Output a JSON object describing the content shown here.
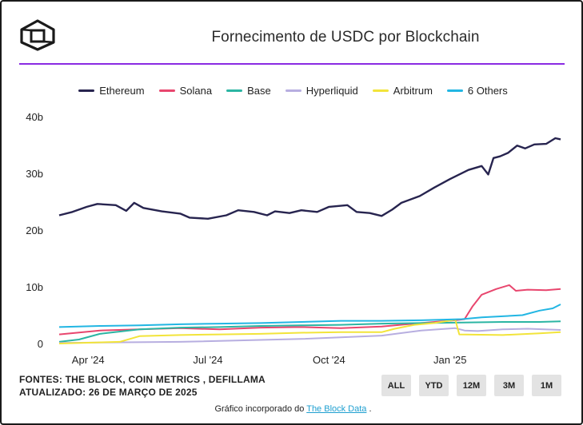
{
  "header": {
    "title": "Fornecimento de USDC por Blockchain"
  },
  "legend": [
    {
      "name": "Ethereum",
      "color": "#27244f"
    },
    {
      "name": "Solana",
      "color": "#e8466e"
    },
    {
      "name": "Base",
      "color": "#2bb5a3"
    },
    {
      "name": "Hyperliquid",
      "color": "#b7aee0"
    },
    {
      "name": "Arbitrum",
      "color": "#f2e43a"
    },
    {
      "name": "6 Others",
      "color": "#22b6e3"
    }
  ],
  "footer": {
    "sources": "FONTES: THE BLOCK, COIN METRICS , DEFILLAMA",
    "updated": "ATUALIZADO: 26 DE MARÇO DE 2025",
    "embed_prefix": "Gráfico incorporado do",
    "embed_link": "The Block Data",
    "embed_suffix": "."
  },
  "range_buttons": [
    "ALL",
    "YTD",
    "12M",
    "3M",
    "1M"
  ],
  "chart_data": {
    "type": "line",
    "title": "Fornecimento de USDC por Blockchain",
    "xlabel": "",
    "ylabel": "",
    "x_range": [
      "2024-03-10",
      "2025-03-26"
    ],
    "ylim": [
      0,
      40
    ],
    "y_ticks": [
      0,
      10,
      20,
      30,
      40
    ],
    "y_tick_labels": [
      "0",
      "10b",
      "20b",
      "30b",
      "40b"
    ],
    "x_ticks": [
      "2024-04-01",
      "2024-07-01",
      "2024-10-01",
      "2025-01-01"
    ],
    "x_tick_labels": [
      "Apr '24",
      "Jul '24",
      "Oct '24",
      "Jan '25"
    ],
    "legend_position": "top",
    "grid": false,
    "series": [
      {
        "name": "Ethereum",
        "color": "#27244f",
        "points": [
          [
            "2024-03-10",
            22.6
          ],
          [
            "2024-03-20",
            23.2
          ],
          [
            "2024-03-31",
            24.1
          ],
          [
            "2024-04-08",
            24.6
          ],
          [
            "2024-04-22",
            24.4
          ],
          [
            "2024-04-30",
            23.4
          ],
          [
            "2024-05-06",
            24.8
          ],
          [
            "2024-05-13",
            23.9
          ],
          [
            "2024-05-27",
            23.3
          ],
          [
            "2024-06-10",
            22.9
          ],
          [
            "2024-06-17",
            22.2
          ],
          [
            "2024-07-01",
            22.0
          ],
          [
            "2024-07-15",
            22.6
          ],
          [
            "2024-07-24",
            23.5
          ],
          [
            "2024-08-05",
            23.2
          ],
          [
            "2024-08-15",
            22.6
          ],
          [
            "2024-08-21",
            23.3
          ],
          [
            "2024-09-01",
            23.0
          ],
          [
            "2024-09-10",
            23.5
          ],
          [
            "2024-09-22",
            23.2
          ],
          [
            "2024-10-01",
            24.1
          ],
          [
            "2024-10-15",
            24.4
          ],
          [
            "2024-10-22",
            23.2
          ],
          [
            "2024-11-01",
            23.0
          ],
          [
            "2024-11-10",
            22.5
          ],
          [
            "2024-11-18",
            23.6
          ],
          [
            "2024-11-25",
            24.8
          ],
          [
            "2024-12-09",
            26.0
          ],
          [
            "2024-12-20",
            27.5
          ],
          [
            "2025-01-01",
            29.0
          ],
          [
            "2025-01-15",
            30.6
          ],
          [
            "2025-01-25",
            31.3
          ],
          [
            "2025-01-30",
            29.8
          ],
          [
            "2025-02-03",
            32.7
          ],
          [
            "2025-02-08",
            33.0
          ],
          [
            "2025-02-14",
            33.6
          ],
          [
            "2025-02-21",
            34.9
          ],
          [
            "2025-02-27",
            34.4
          ],
          [
            "2025-03-06",
            35.1
          ],
          [
            "2025-03-15",
            35.2
          ],
          [
            "2025-03-22",
            36.2
          ],
          [
            "2025-03-26",
            36.0
          ]
        ]
      },
      {
        "name": "Solana",
        "color": "#e8466e",
        "points": [
          [
            "2024-03-10",
            1.6
          ],
          [
            "2024-04-10",
            2.3
          ],
          [
            "2024-05-10",
            2.5
          ],
          [
            "2024-06-10",
            2.7
          ],
          [
            "2024-07-10",
            2.5
          ],
          [
            "2024-08-10",
            2.8
          ],
          [
            "2024-09-10",
            2.9
          ],
          [
            "2024-10-10",
            2.7
          ],
          [
            "2024-11-10",
            3.0
          ],
          [
            "2024-12-10",
            3.6
          ],
          [
            "2025-01-05",
            4.1
          ],
          [
            "2025-01-12",
            4.3
          ],
          [
            "2025-01-18",
            6.5
          ],
          [
            "2025-01-25",
            8.6
          ],
          [
            "2025-02-05",
            9.6
          ],
          [
            "2025-02-15",
            10.3
          ],
          [
            "2025-02-20",
            9.3
          ],
          [
            "2025-03-01",
            9.5
          ],
          [
            "2025-03-15",
            9.4
          ],
          [
            "2025-03-26",
            9.6
          ]
        ]
      },
      {
        "name": "Base",
        "color": "#2bb5a3",
        "points": [
          [
            "2024-03-10",
            0.3
          ],
          [
            "2024-03-25",
            0.7
          ],
          [
            "2024-04-10",
            1.7
          ],
          [
            "2024-05-10",
            2.5
          ],
          [
            "2024-06-10",
            2.8
          ],
          [
            "2024-07-10",
            2.9
          ],
          [
            "2024-08-10",
            3.1
          ],
          [
            "2024-09-10",
            3.2
          ],
          [
            "2024-10-10",
            3.3
          ],
          [
            "2024-11-10",
            3.5
          ],
          [
            "2024-12-10",
            3.6
          ],
          [
            "2025-01-10",
            3.7
          ],
          [
            "2025-02-10",
            3.8
          ],
          [
            "2025-03-10",
            3.8
          ],
          [
            "2025-03-26",
            3.9
          ]
        ]
      },
      {
        "name": "Hyperliquid",
        "color": "#b7aee0",
        "points": [
          [
            "2024-03-10",
            0.1
          ],
          [
            "2024-06-10",
            0.3
          ],
          [
            "2024-09-10",
            0.8
          ],
          [
            "2024-11-10",
            1.4
          ],
          [
            "2024-12-10",
            2.3
          ],
          [
            "2025-01-05",
            2.7
          ],
          [
            "2025-01-12",
            2.3
          ],
          [
            "2025-01-22",
            2.2
          ],
          [
            "2025-02-10",
            2.5
          ],
          [
            "2025-03-01",
            2.6
          ],
          [
            "2025-03-26",
            2.4
          ]
        ]
      },
      {
        "name": "Arbitrum",
        "color": "#f2e43a",
        "points": [
          [
            "2024-03-10",
            0.0
          ],
          [
            "2024-04-25",
            0.3
          ],
          [
            "2024-05-10",
            1.3
          ],
          [
            "2024-06-10",
            1.5
          ],
          [
            "2024-07-10",
            1.6
          ],
          [
            "2024-08-10",
            1.7
          ],
          [
            "2024-09-10",
            1.9
          ],
          [
            "2024-10-10",
            2.0
          ],
          [
            "2024-11-10",
            2.0
          ],
          [
            "2024-11-20",
            2.6
          ],
          [
            "2024-12-05",
            3.3
          ],
          [
            "2024-12-20",
            3.6
          ],
          [
            "2025-01-05",
            4.2
          ],
          [
            "2025-01-08",
            1.6
          ],
          [
            "2025-02-10",
            1.5
          ],
          [
            "2025-03-10",
            1.8
          ],
          [
            "2025-03-26",
            2.0
          ]
        ]
      },
      {
        "name": "6 Others",
        "color": "#22b6e3",
        "points": [
          [
            "2024-03-10",
            2.9
          ],
          [
            "2024-04-10",
            3.1
          ],
          [
            "2024-05-10",
            3.2
          ],
          [
            "2024-06-10",
            3.4
          ],
          [
            "2024-07-10",
            3.5
          ],
          [
            "2024-08-10",
            3.6
          ],
          [
            "2024-09-10",
            3.8
          ],
          [
            "2024-10-10",
            4.0
          ],
          [
            "2024-11-10",
            4.0
          ],
          [
            "2024-12-10",
            4.1
          ],
          [
            "2025-01-10",
            4.3
          ],
          [
            "2025-01-25",
            4.6
          ],
          [
            "2025-02-10",
            4.8
          ],
          [
            "2025-02-25",
            5.0
          ],
          [
            "2025-03-10",
            5.8
          ],
          [
            "2025-03-20",
            6.2
          ],
          [
            "2025-03-26",
            6.9
          ]
        ]
      }
    ]
  }
}
